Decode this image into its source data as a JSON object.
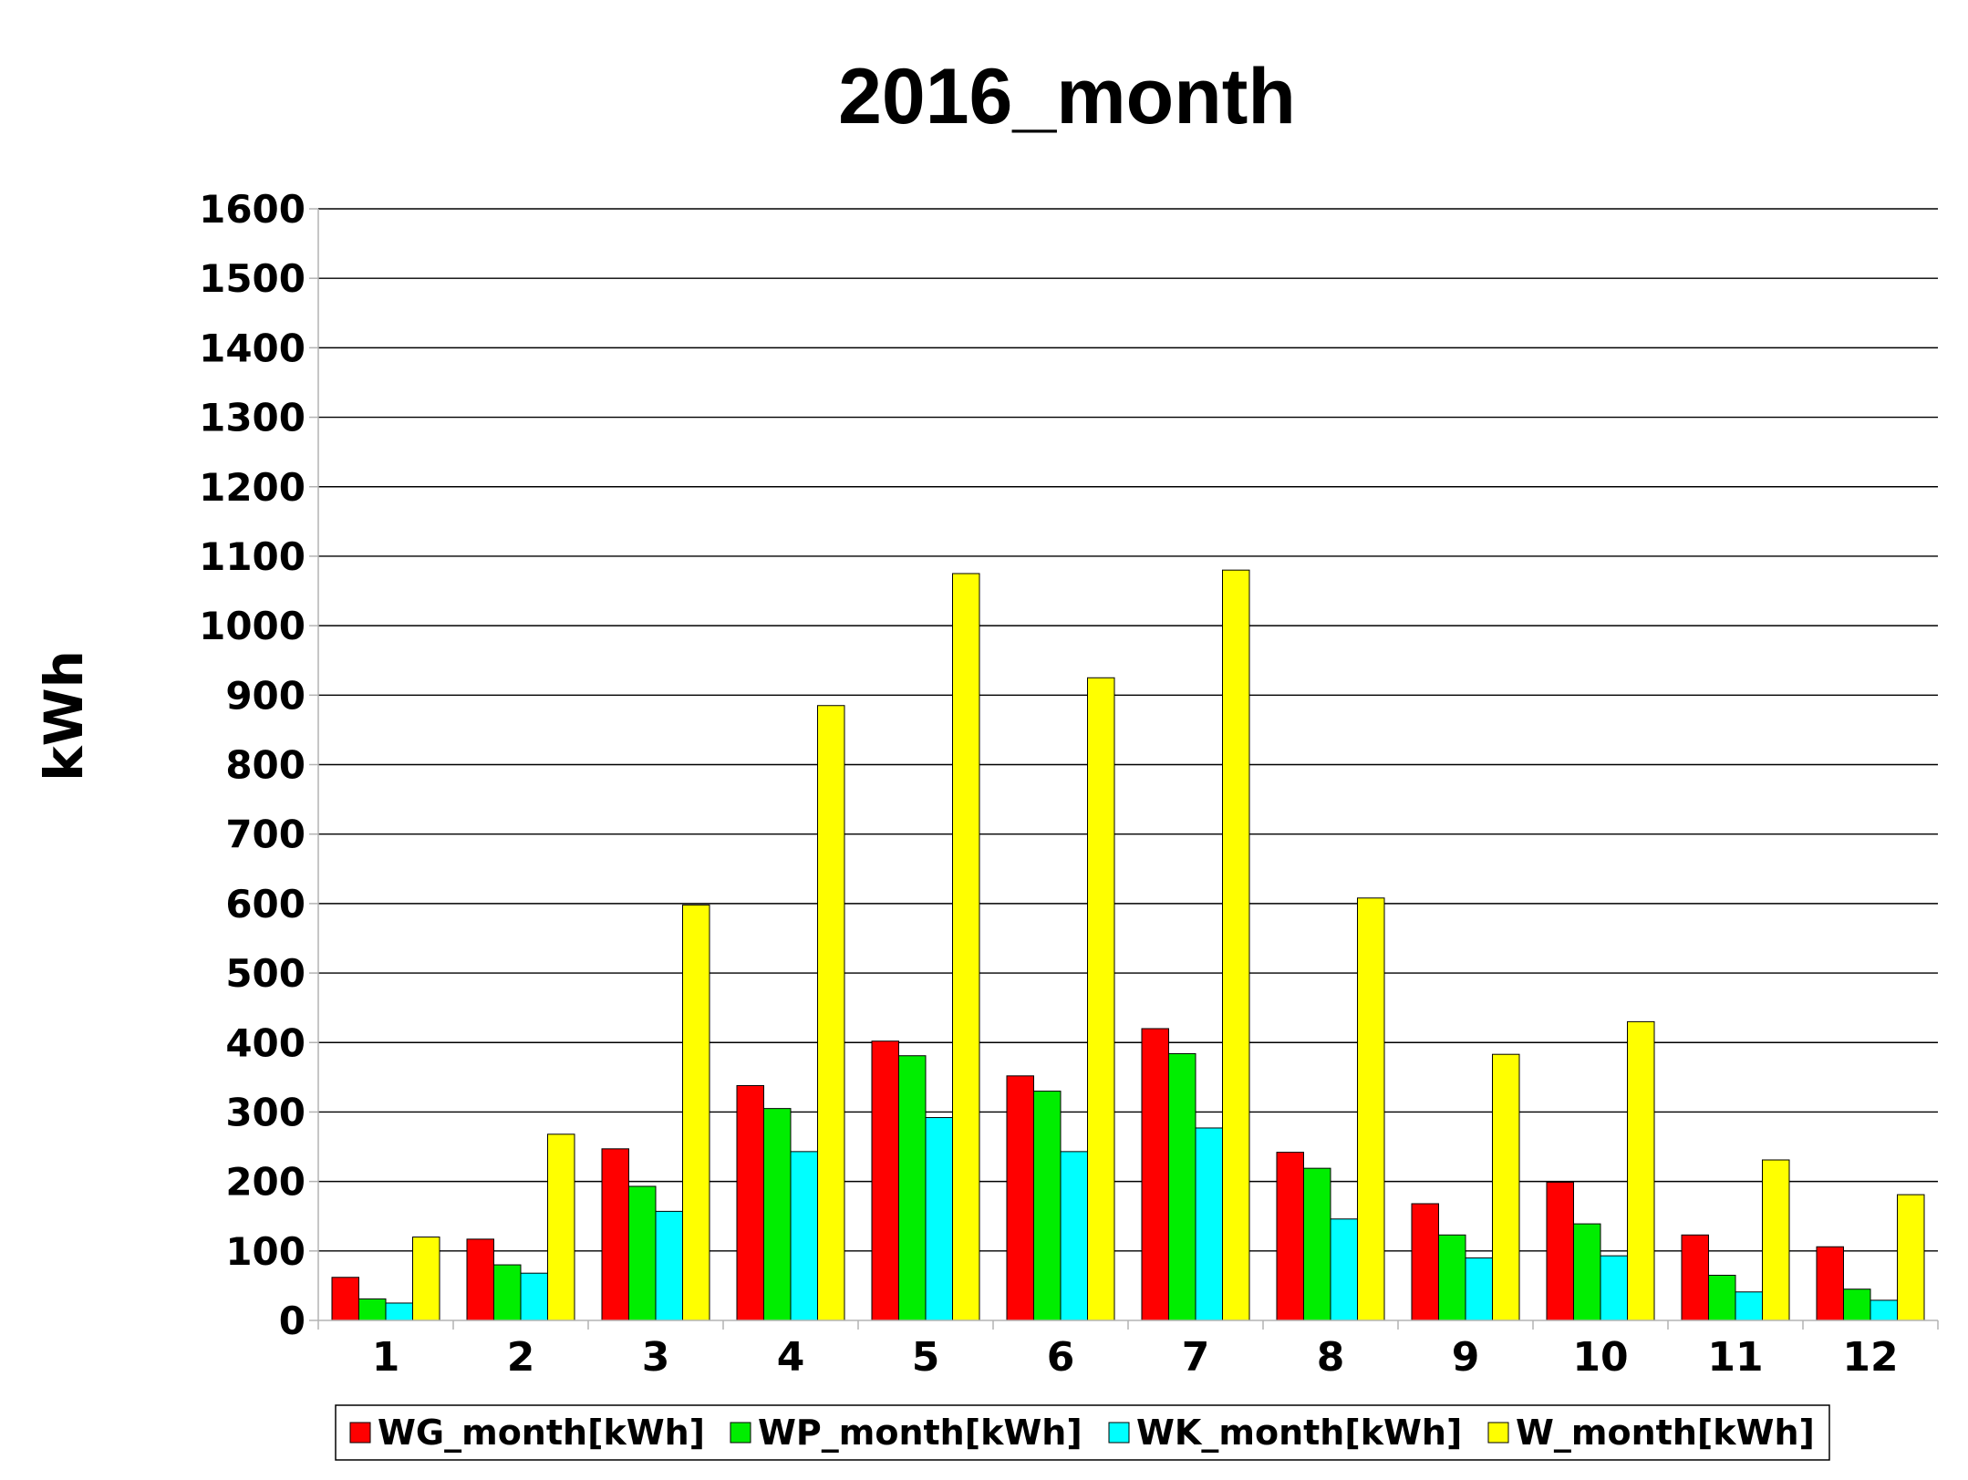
{
  "chart_data": {
    "type": "bar",
    "title": "2016_month",
    "xlabel": "",
    "ylabel": "kWh",
    "ylim": [
      0,
      1600
    ],
    "yticks": [
      0,
      100,
      200,
      300,
      400,
      500,
      600,
      700,
      800,
      900,
      1000,
      1100,
      1200,
      1300,
      1400,
      1500,
      1600
    ],
    "grid": true,
    "legend_position": "bottom",
    "categories": [
      "1",
      "2",
      "3",
      "4",
      "5",
      "6",
      "7",
      "8",
      "9",
      "10",
      "11",
      "12"
    ],
    "series": [
      {
        "name": "WG_month[kWh]",
        "color": "#ff0000",
        "values": [
          62,
          117,
          247,
          338,
          402,
          352,
          420,
          242,
          168,
          199,
          123,
          106
        ]
      },
      {
        "name": "WP_month[kWh]",
        "color": "#00ee00",
        "values": [
          31,
          80,
          193,
          305,
          381,
          330,
          384,
          219,
          123,
          139,
          65,
          45
        ]
      },
      {
        "name": "WK_month[kWh]",
        "color": "#00ffff",
        "values": [
          25,
          68,
          157,
          243,
          292,
          243,
          277,
          146,
          90,
          93,
          41,
          29
        ]
      },
      {
        "name": "W_month[kWh]",
        "color": "#ffff00",
        "values": [
          120,
          268,
          598,
          885,
          1075,
          925,
          1080,
          608,
          383,
          430,
          231,
          181
        ]
      }
    ]
  }
}
